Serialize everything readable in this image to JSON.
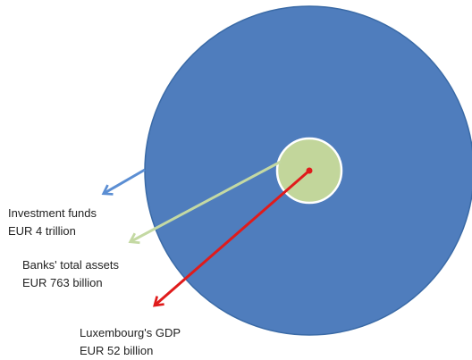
{
  "colors": {
    "funds_circle": "#4f7dbd",
    "funds_circle_stroke": "#3a6aa6",
    "banks_circle": "#c2d69b",
    "gdp_dot": "#e01b1b",
    "funds_arrow": "#5b8ed3",
    "banks_arrow": "#c4d9a3",
    "gdp_arrow": "#e01b1b"
  },
  "labels": {
    "investment_funds": {
      "name": "Investment funds",
      "value": "EUR 4 trillion"
    },
    "banks": {
      "name": "Banks' total assets",
      "value": "EUR 763 billion"
    },
    "gdp": {
      "name": "Luxembourg's GDP",
      "value": "EUR 52 billion"
    }
  }
}
